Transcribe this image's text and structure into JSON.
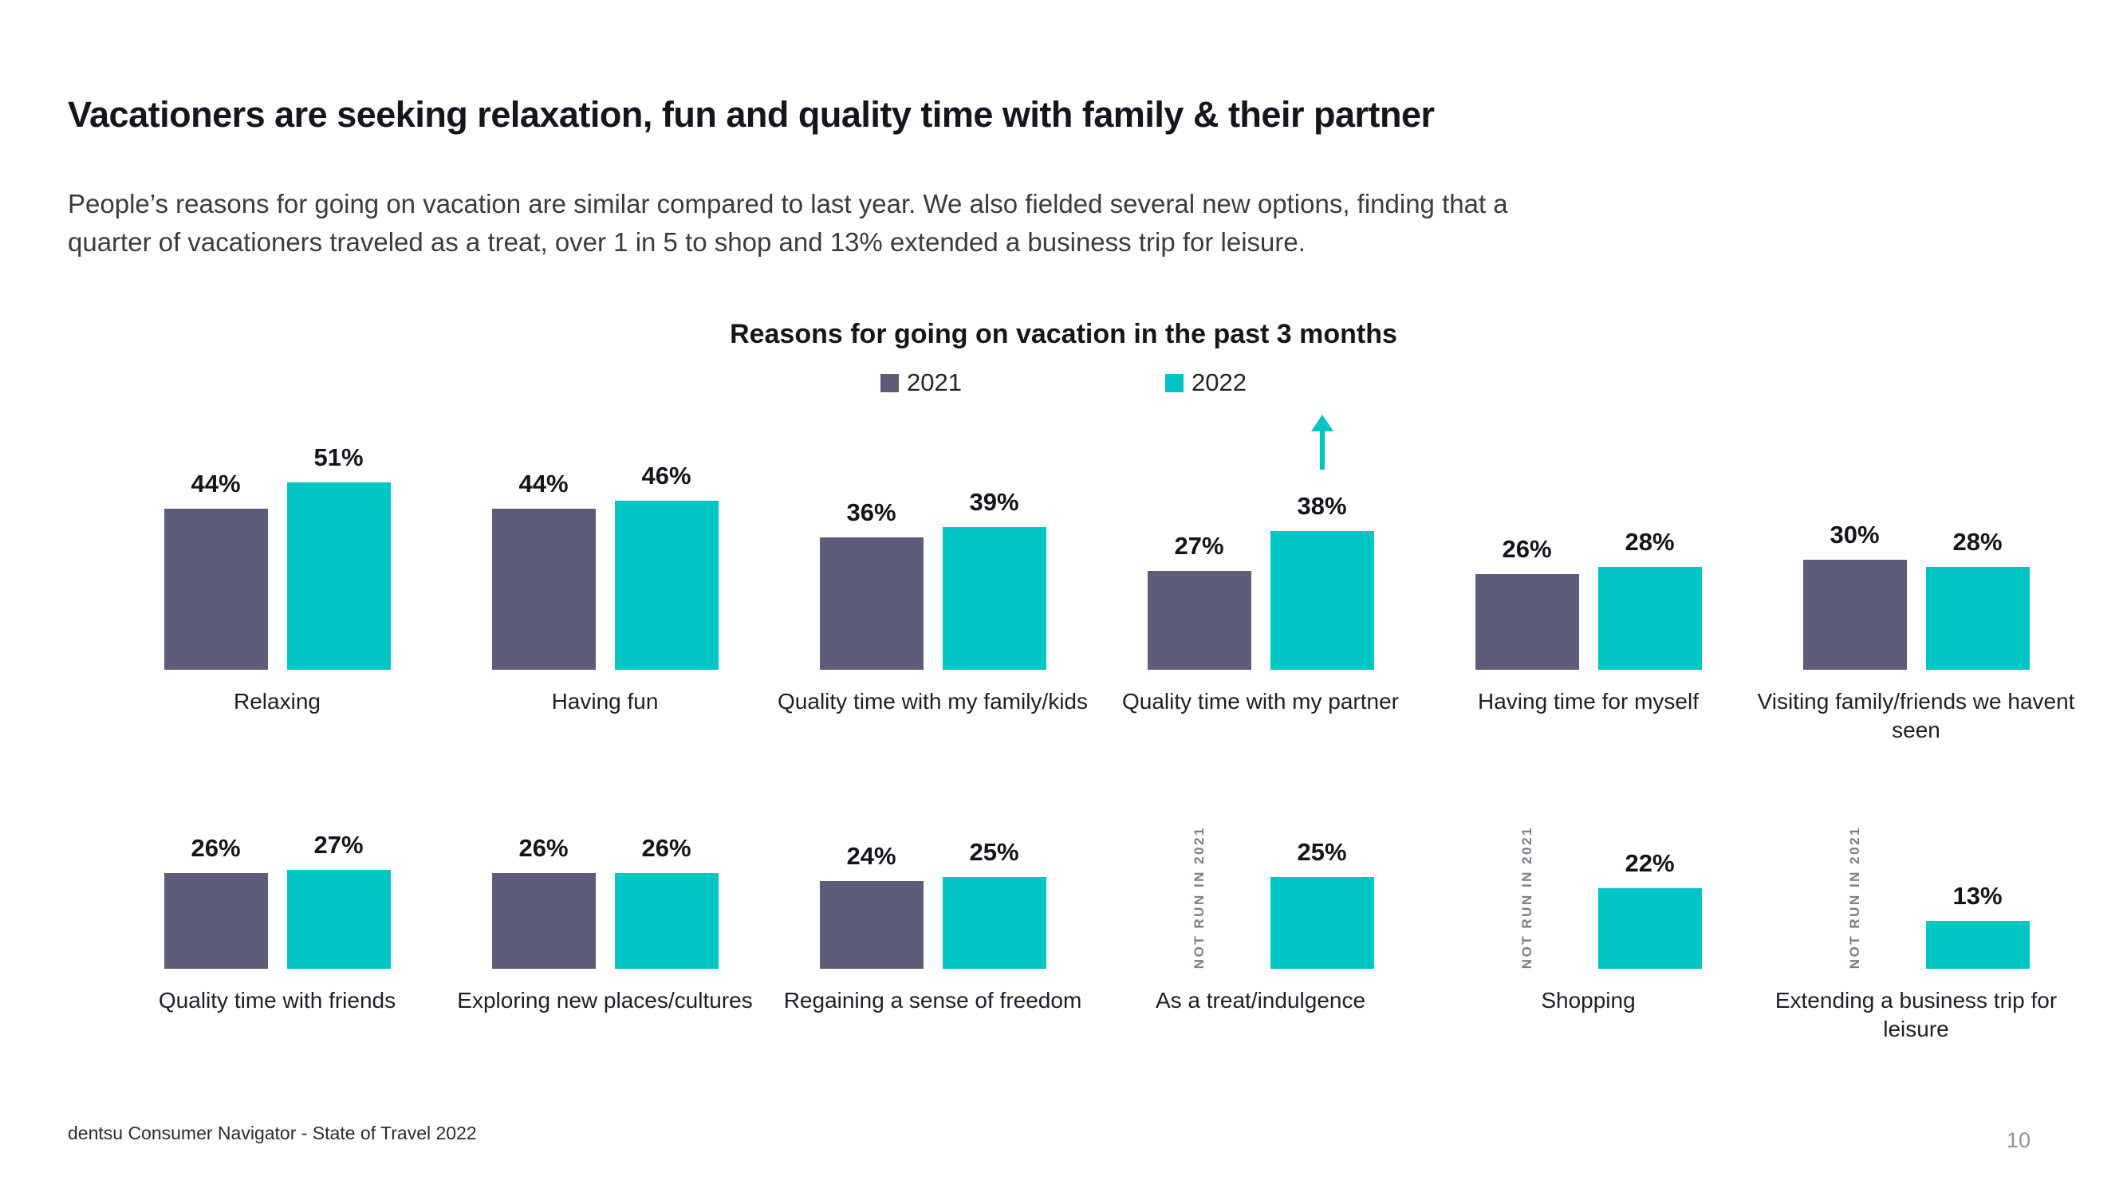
{
  "slide": {
    "title": "Vacationers are seeking relaxation, fun and quality time with family & their partner",
    "subtitle_lines": [
      "People’s reasons for going on vacation are similar compared to last year. We also fielded several new options, finding that a",
      "quarter of vacationers traveled as a treat, over 1 in 5 to shop and 13% extended a business trip for leisure."
    ],
    "footer": "dentsu Consumer Navigator - State of Travel 2022",
    "page_number": "10"
  },
  "chart_data": {
    "type": "bar",
    "title": "Reasons for going on vacation in the past 3 months",
    "value_suffix": "%",
    "categories": [
      "Relaxing",
      "Having fun",
      "Quality time with my family/kids",
      "Quality time with my partner",
      "Having time for myself",
      "Visiting family/friends we havent seen",
      "Quality time with friends",
      "Exploring new places/cultures",
      "Regaining a sense of freedom",
      "As a treat/indulgence",
      "Shopping",
      "Extending a business trip for leisure"
    ],
    "series": [
      {
        "name": "2021",
        "color": "#5e5d79",
        "values": [
          44,
          44,
          36,
          27,
          26,
          30,
          26,
          26,
          24,
          null,
          null,
          null
        ]
      },
      {
        "name": "2022",
        "color": "#00c5c5",
        "values": [
          51,
          46,
          39,
          38,
          28,
          28,
          27,
          26,
          25,
          25,
          22,
          13
        ]
      }
    ],
    "missing_note": "NOT RUN IN 2021",
    "annotations": [
      {
        "category_index": 3,
        "series": "2022",
        "type": "up-arrow",
        "color": "#00c5c5"
      }
    ],
    "layout": {
      "rows": 2,
      "cols": 6,
      "legend_position": "top",
      "grid": false,
      "ylim": [
        0,
        55
      ]
    }
  }
}
